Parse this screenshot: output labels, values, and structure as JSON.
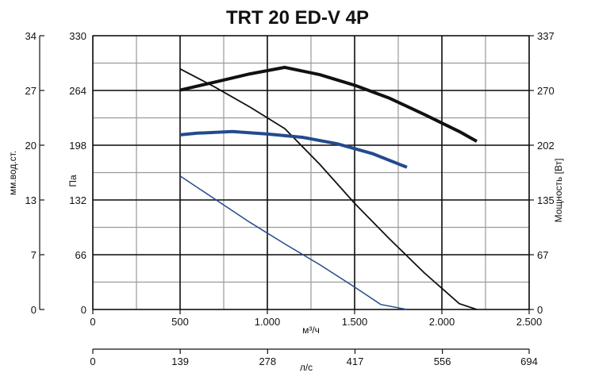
{
  "chart_data": {
    "type": "line",
    "title": "TRT 20 ED-V 4P",
    "x_axis": {
      "label": "м³/ч",
      "range": [
        0,
        2500
      ],
      "ticks": [
        0,
        500,
        1000,
        1500,
        2000,
        2500
      ],
      "tick_labels": [
        "0",
        "500",
        "1.000",
        "1.500",
        "2.000",
        "2.500"
      ]
    },
    "x2_axis": {
      "label": "л/с",
      "range": [
        0,
        694
      ],
      "ticks": [
        0,
        139,
        278,
        417,
        556,
        694
      ],
      "tick_labels": [
        "0",
        "139",
        "278",
        "417",
        "556",
        "694"
      ]
    },
    "y_axis": {
      "label": "Па",
      "range": [
        0,
        330
      ],
      "ticks": [
        0,
        66,
        132,
        198,
        264,
        330
      ],
      "tick_labels": [
        "0",
        "66",
        "132",
        "198",
        "264",
        "330"
      ]
    },
    "y_outer_axis": {
      "label": "мм.вод.ст.",
      "range": [
        0,
        34
      ],
      "tick_labels": [
        "0",
        "7",
        "13",
        "20",
        "27",
        "34"
      ]
    },
    "y_right_axis": {
      "label": "Мощность [Вт]",
      "range": [
        0,
        337
      ],
      "tick_labels": [
        "0",
        "67",
        "135",
        "202",
        "270",
        "337"
      ]
    },
    "grid": true,
    "minor_grid": true,
    "series": [
      {
        "axis": "y",
        "color": "#111111",
        "x": [
          500,
          700,
          900,
          1100,
          1300,
          1500,
          1700,
          1900,
          2100,
          2200
        ],
        "y": [
          290,
          268,
          244,
          218,
          175,
          128,
          85,
          44,
          7,
          0
        ]
      },
      {
        "axis": "y",
        "color": "#234a8c",
        "x": [
          500,
          700,
          900,
          1100,
          1300,
          1500,
          1650,
          1800
        ],
        "y": [
          161,
          133,
          105,
          79,
          54,
          27,
          6,
          0
        ]
      },
      {
        "axis": "y_right",
        "color": "#111111",
        "x": [
          500,
          700,
          900,
          1100,
          1300,
          1500,
          1700,
          1900,
          2100,
          2200
        ],
        "y": [
          270,
          280,
          290,
          298,
          289,
          276,
          260,
          240,
          219,
          207
        ]
      },
      {
        "axis": "y_right",
        "color": "#234a8c",
        "x": [
          500,
          600,
          800,
          1000,
          1200,
          1400,
          1600,
          1800
        ],
        "y": [
          215,
          217,
          219,
          216,
          212,
          204,
          192,
          175
        ]
      }
    ]
  }
}
